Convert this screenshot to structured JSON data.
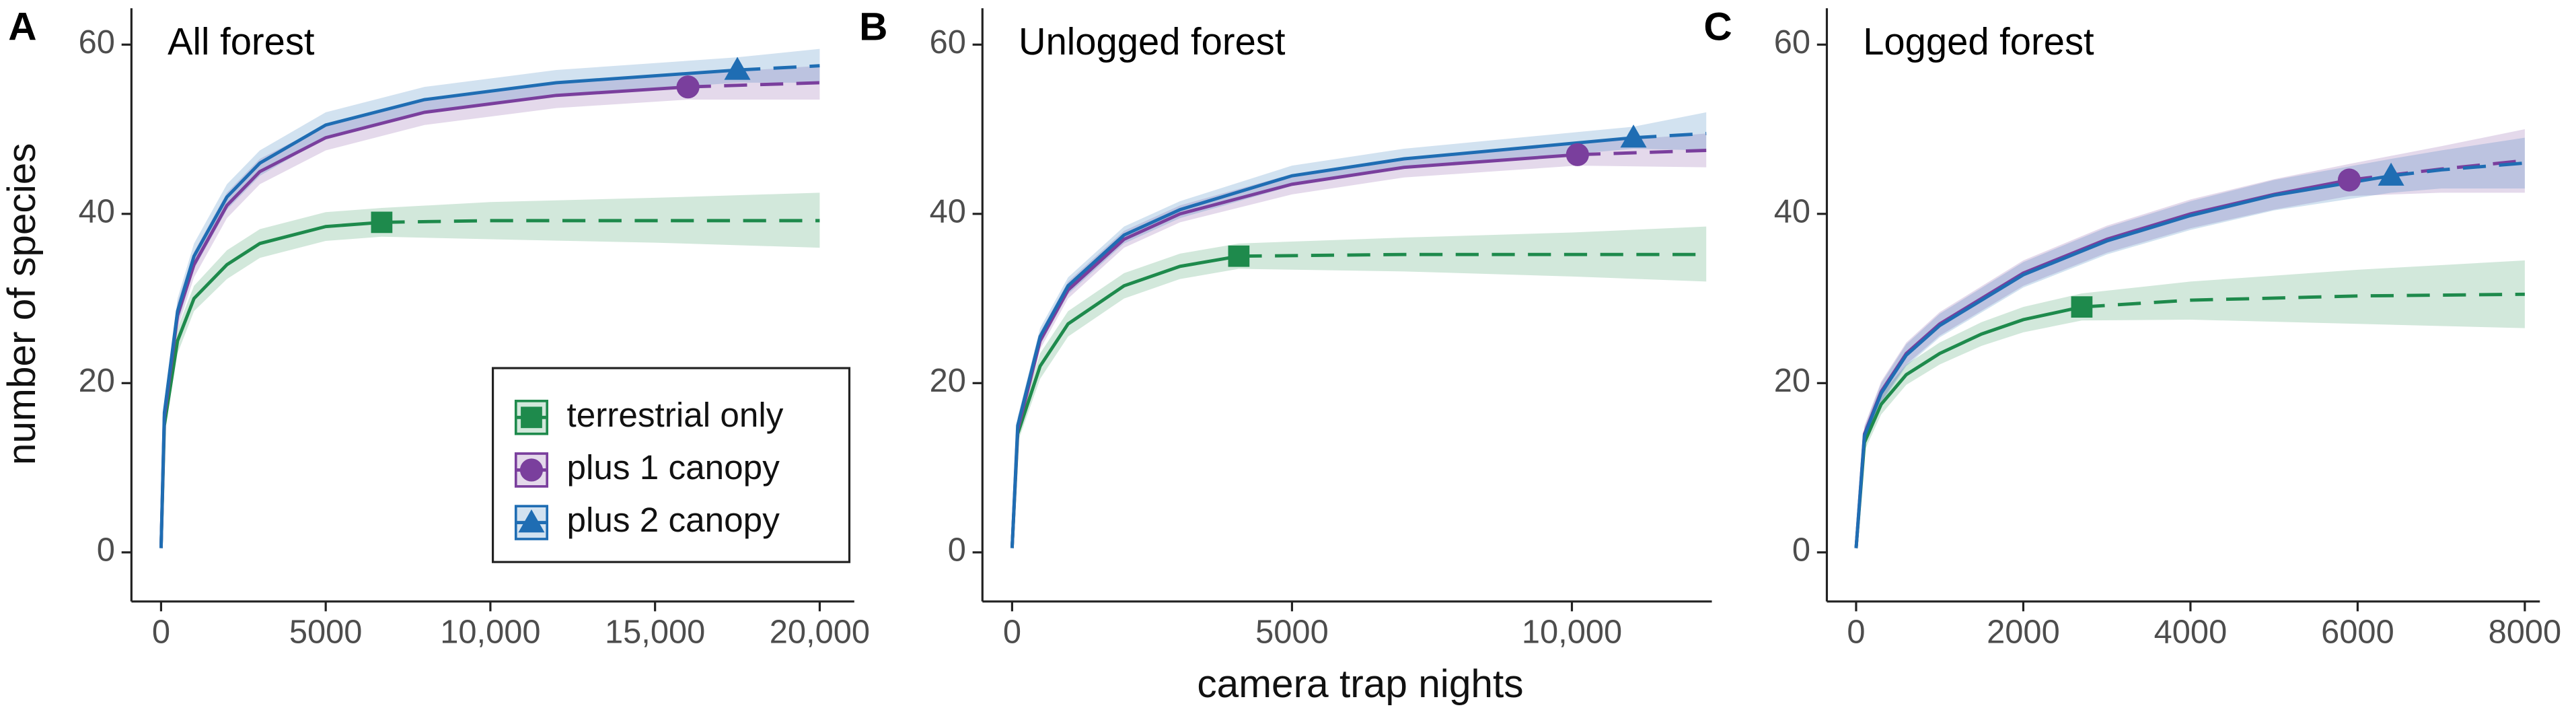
{
  "ylabel": "number of species",
  "xlabel": "camera trap nights",
  "chart_data": [
    {
      "type": "line",
      "label": "A",
      "title": "All forest",
      "legend": "bottom-right",
      "xlim": [
        -900,
        21050
      ],
      "ylim": [
        -5.8,
        64.3
      ],
      "xticks": [
        0,
        5000,
        {
          "value": 10000,
          "label": "10,000"
        },
        {
          "value": 15000,
          "label": "15,000"
        },
        {
          "value": 20000,
          "label": "20,000"
        }
      ],
      "yticks": [
        0,
        20,
        40,
        60
      ],
      "series": [
        {
          "name": "terrestrial only",
          "color": "#1e8a4c",
          "marker": "square",
          "x": [
            0,
            100,
            500,
            1000,
            2000,
            3000,
            5000,
            6700,
            10000,
            15000,
            20000
          ],
          "values": [
            0.5,
            15,
            25,
            30,
            34,
            36.5,
            38.5,
            39,
            39.2,
            39.2,
            39.2
          ],
          "lower": [
            0.5,
            14,
            23.5,
            28.5,
            32.3,
            34.8,
            36.8,
            37.3,
            37,
            36.6,
            36
          ],
          "upper": [
            0.5,
            16,
            26.5,
            31.5,
            35.7,
            38.2,
            40.2,
            40.7,
            41.4,
            41.9,
            42.5
          ],
          "observed": {
            "x": 6700,
            "y": 39
          }
        },
        {
          "name": "plus 1 canopy",
          "color": "#7a3f9d",
          "marker": "circle",
          "x": [
            0,
            100,
            500,
            1000,
            2000,
            3000,
            5000,
            8000,
            12000,
            16000,
            20000
          ],
          "values": [
            0.5,
            16,
            28,
            34,
            41,
            45,
            49,
            52,
            54,
            55,
            55.5
          ],
          "lower": [
            0.5,
            15,
            26.5,
            32.5,
            39.5,
            43.5,
            47.5,
            50.5,
            52.5,
            53.5,
            53.5
          ],
          "upper": [
            0.5,
            17,
            29.5,
            35.5,
            42.5,
            46.5,
            50.5,
            53.5,
            55.5,
            56.5,
            57.5
          ],
          "observed": {
            "x": 16000,
            "y": 55
          }
        },
        {
          "name": "plus 2 canopy",
          "color": "#1f6db3",
          "marker": "triangle",
          "x": [
            0,
            100,
            500,
            1000,
            2000,
            3000,
            5000,
            8000,
            12000,
            17500,
            20000
          ],
          "values": [
            0.5,
            16.5,
            28.5,
            35,
            42,
            46,
            50.5,
            53.5,
            55.5,
            57,
            57.5
          ],
          "lower": [
            0.5,
            15.5,
            27,
            33.5,
            40.5,
            44.5,
            49,
            52,
            54,
            55.5,
            55.5
          ],
          "upper": [
            0.5,
            17.5,
            30,
            36.5,
            43.5,
            47.5,
            52,
            55,
            57,
            58.5,
            59.5
          ],
          "observed": {
            "x": 17500,
            "y": 57
          }
        }
      ]
    },
    {
      "type": "line",
      "label": "B",
      "title": "Unlogged forest",
      "xlim": [
        -530,
        12500
      ],
      "ylim": [
        -5.8,
        64.3
      ],
      "xticks": [
        0,
        5000,
        {
          "value": 10000,
          "label": "10,000"
        }
      ],
      "yticks": [
        0,
        20,
        40,
        60
      ],
      "series": [
        {
          "name": "terrestrial only",
          "color": "#1e8a4c",
          "marker": "square",
          "x": [
            0,
            100,
            500,
            1000,
            2000,
            3000,
            4050,
            7000,
            10000,
            12400
          ],
          "values": [
            0.5,
            14,
            22,
            27,
            31.5,
            33.8,
            35,
            35.2,
            35.2,
            35.2
          ],
          "lower": [
            0.5,
            13,
            20.5,
            25.5,
            30,
            32.3,
            33.5,
            33.2,
            32.6,
            32
          ],
          "upper": [
            0.5,
            15,
            23.5,
            28.5,
            33,
            35.3,
            36.5,
            37.2,
            37.8,
            38.5
          ],
          "observed": {
            "x": 4050,
            "y": 35
          }
        },
        {
          "name": "plus 1 canopy",
          "color": "#7a3f9d",
          "marker": "circle",
          "x": [
            0,
            100,
            500,
            1000,
            2000,
            3000,
            5000,
            7000,
            10100,
            12400
          ],
          "values": [
            0.5,
            14.5,
            25,
            31,
            37,
            40,
            43.5,
            45.5,
            47,
            47.5
          ],
          "lower": [
            0.5,
            13.5,
            24,
            30,
            36,
            39,
            42.3,
            44.3,
            45.7,
            45.5
          ],
          "upper": [
            0.5,
            15.5,
            26,
            32,
            38,
            41,
            44.7,
            46.7,
            48.3,
            49.5
          ],
          "observed": {
            "x": 10100,
            "y": 47
          }
        },
        {
          "name": "plus 2 canopy",
          "color": "#1f6db3",
          "marker": "triangle",
          "x": [
            0,
            100,
            500,
            1000,
            2000,
            3000,
            5000,
            7000,
            11100,
            12400
          ],
          "values": [
            0.5,
            15,
            25.5,
            31.5,
            37.5,
            40.5,
            44.5,
            46.5,
            49,
            49.5
          ],
          "lower": [
            0.5,
            14,
            24.5,
            30.5,
            36.5,
            39.5,
            43.3,
            45.3,
            47.7,
            47.5
          ],
          "upper": [
            0.5,
            16,
            26.5,
            32.5,
            38.5,
            41.5,
            45.7,
            47.7,
            50.3,
            52
          ],
          "observed": {
            "x": 11100,
            "y": 49
          }
        }
      ]
    },
    {
      "type": "line",
      "label": "C",
      "title": "Logged forest",
      "xlim": [
        -350,
        8180
      ],
      "ylim": [
        -5.8,
        64.3
      ],
      "xticks": [
        0,
        2000,
        4000,
        6000,
        8000
      ],
      "yticks": [
        0,
        20,
        40,
        60
      ],
      "series": [
        {
          "name": "terrestrial only",
          "color": "#1e8a4c",
          "marker": "square",
          "x": [
            0,
            100,
            300,
            600,
            1000,
            1500,
            2000,
            2700,
            4000,
            6000,
            8000
          ],
          "values": [
            0.5,
            13,
            17.5,
            21,
            23.5,
            25.8,
            27.5,
            29,
            29.8,
            30.3,
            30.5
          ],
          "lower": [
            0.5,
            12,
            16.3,
            19.8,
            22.2,
            24.4,
            26,
            27.4,
            27.5,
            27,
            26.5
          ],
          "upper": [
            0.5,
            14,
            18.7,
            22.2,
            24.8,
            27.2,
            29,
            30.6,
            32,
            33.4,
            34.5
          ],
          "observed": {
            "x": 2700,
            "y": 29
          }
        },
        {
          "name": "plus 1 canopy",
          "color": "#7a3f9d",
          "marker": "circle",
          "x": [
            0,
            100,
            300,
            600,
            1000,
            2000,
            3000,
            4000,
            5000,
            5900,
            7000,
            8000
          ],
          "values": [
            0.5,
            14,
            19,
            23.5,
            27,
            33,
            37,
            40,
            42.3,
            44,
            45.3,
            46.3
          ],
          "lower": [
            0.5,
            13,
            17.8,
            22.2,
            25.6,
            31.5,
            35.4,
            38.3,
            40.5,
            42.1,
            42.5,
            42.5
          ],
          "upper": [
            0.5,
            15,
            20.2,
            24.8,
            28.4,
            34.5,
            38.6,
            41.7,
            44.1,
            45.9,
            48,
            50
          ],
          "observed": {
            "x": 5900,
            "y": 44
          }
        },
        {
          "name": "plus 2 canopy",
          "color": "#1f6db3",
          "marker": "triangle",
          "x": [
            0,
            100,
            300,
            600,
            1000,
            2000,
            3000,
            4000,
            5000,
            6400,
            7000,
            8000
          ],
          "values": [
            0.5,
            13.8,
            18.8,
            23.3,
            26.8,
            32.8,
            36.8,
            39.8,
            42.2,
            44.5,
            45.2,
            46
          ],
          "lower": [
            0.5,
            12.8,
            17.6,
            22,
            25.4,
            31.3,
            35.2,
            38.1,
            40.4,
            42.5,
            43,
            43
          ],
          "upper": [
            0.5,
            14.8,
            20,
            24.6,
            28.2,
            34.3,
            38.4,
            41.5,
            44,
            46.5,
            47.5,
            49
          ],
          "observed": {
            "x": 6400,
            "y": 44.5
          }
        }
      ]
    }
  ]
}
